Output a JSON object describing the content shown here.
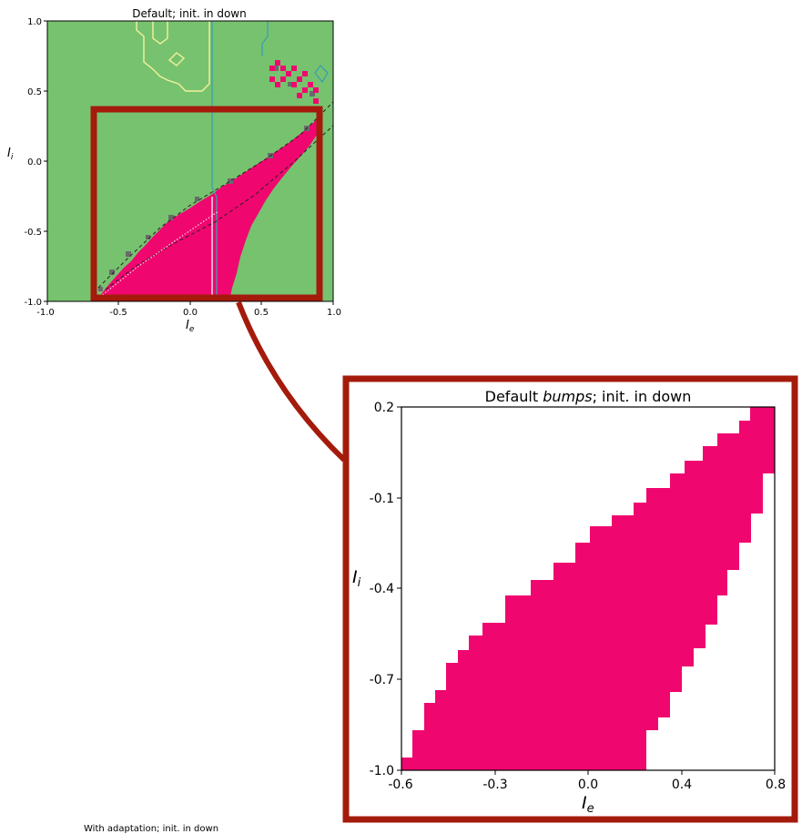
{
  "chart_data": [
    {
      "type": "heatmap",
      "title": "Default; init. in down",
      "xlabel_main": "I",
      "xlabel_sub": "e",
      "ylabel_main": "I",
      "ylabel_sub": "i",
      "xlim": [
        -1.0,
        1.0
      ],
      "ylim": [
        -1.0,
        1.0
      ],
      "xticks": [
        "-1.0",
        "-0.5",
        "0.0",
        "0.5",
        "1.0"
      ],
      "yticks": [
        "1.0",
        "0.5",
        "0.0",
        "-0.5",
        "-1.0"
      ],
      "background_color": "#77c26f",
      "region_color": "#f0066f",
      "region_lower_boundary": [
        [
          -0.6,
          -1.0
        ],
        [
          0.25,
          -1.0
        ],
        [
          0.8,
          0.2
        ]
      ],
      "region_upper_boundary": [
        [
          -0.66,
          -1.0
        ],
        [
          -0.3,
          -0.55
        ],
        [
          0.0,
          -0.25
        ],
        [
          0.4,
          -0.1
        ],
        [
          0.8,
          0.2
        ]
      ],
      "zoom_window": {
        "xlim": [
          -0.65,
          0.9
        ],
        "ylim": [
          -1.0,
          0.38
        ]
      }
    },
    {
      "type": "heatmap",
      "title_prefix": "Default ",
      "title_emph": "bumps",
      "title_suffix": "; init. in down",
      "xlabel_main": "I",
      "xlabel_sub": "e",
      "ylabel_main": "I",
      "ylabel_sub": "i",
      "xlim": [
        -0.6,
        0.8
      ],
      "ylim": [
        -1.0,
        0.2
      ],
      "xticks": [
        "-0.6",
        "-0.3",
        "0.0",
        "0.4",
        "0.8"
      ],
      "yticks": [
        "0.2",
        "-0.1",
        "-0.4",
        "-0.7",
        "-1.0"
      ],
      "region_color": "#f0066f",
      "region_upper_steps": [
        [
          -0.6,
          -0.96
        ],
        [
          -0.56,
          -0.88
        ],
        [
          -0.52,
          -0.82
        ],
        [
          -0.48,
          -0.77
        ],
        [
          -0.44,
          -0.73
        ],
        [
          -0.4,
          -0.69
        ],
        [
          -0.36,
          -0.665
        ],
        [
          -0.33,
          -0.605
        ],
        [
          -0.27,
          -0.535
        ],
        [
          -0.2,
          -0.455
        ],
        [
          -0.12,
          -0.37
        ],
        [
          -0.05,
          -0.295
        ],
        [
          0.0,
          -0.245
        ],
        [
          0.08,
          -0.22
        ],
        [
          0.18,
          -0.17
        ],
        [
          0.28,
          -0.12
        ],
        [
          0.36,
          -0.07
        ],
        [
          0.42,
          -0.02
        ],
        [
          0.48,
          0.03
        ],
        [
          0.56,
          0.08
        ],
        [
          0.64,
          0.15
        ],
        [
          0.72,
          0.2
        ],
        [
          0.8,
          0.2
        ]
      ],
      "region_lower_steps": [
        [
          -0.6,
          -1.0
        ],
        [
          0.25,
          -1.0
        ],
        [
          0.25,
          -0.92
        ],
        [
          0.33,
          -0.87
        ],
        [
          0.37,
          -0.82
        ],
        [
          0.4,
          -0.76
        ],
        [
          0.44,
          -0.7
        ],
        [
          0.48,
          -0.63
        ],
        [
          0.53,
          -0.57
        ],
        [
          0.57,
          -0.49
        ],
        [
          0.6,
          -0.41
        ],
        [
          0.64,
          -0.33
        ],
        [
          0.67,
          -0.25
        ],
        [
          0.72,
          -0.17
        ],
        [
          0.76,
          -0.08
        ],
        [
          0.78,
          0.0
        ],
        [
          0.8,
          0.02
        ]
      ]
    }
  ],
  "bottom_caption": "With adaptation; init. in down"
}
